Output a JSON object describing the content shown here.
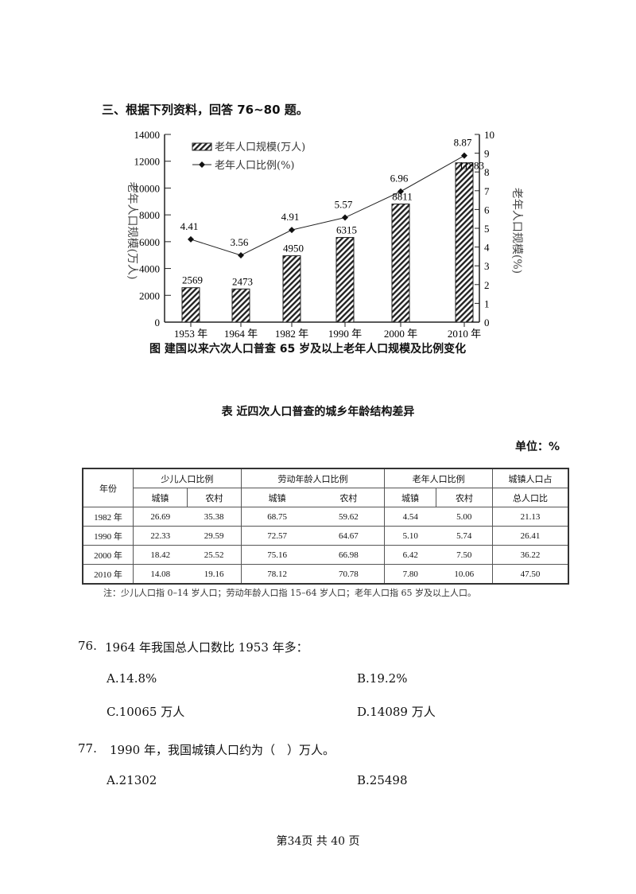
{
  "section_heading": "三、根据下列资料，回答 76~80 题。",
  "chart_data": {
    "type": "bar+line",
    "caption": "图 建国以来六次人口普查 65 岁及以上老年人口规模及比例变化",
    "categories": [
      "1953 年",
      "1964 年",
      "1982 年",
      "1990 年",
      "2000 年",
      "2010 年"
    ],
    "series": [
      {
        "name": "老年人口规模(万人)",
        "type": "bar",
        "axis": "left",
        "values": [
          2569,
          2473,
          4950,
          6315,
          8811,
          11883
        ]
      },
      {
        "name": "老年人口比例(%)",
        "type": "line",
        "axis": "right",
        "values": [
          4.41,
          3.56,
          4.91,
          5.57,
          6.96,
          8.87
        ]
      }
    ],
    "ylabel_left": "老年人口规模(万人)",
    "ylabel_right": "老年人口规模(%)",
    "ylim_left": [
      0,
      14000
    ],
    "yticks_left": [
      "0",
      "2000",
      "4000",
      "6000",
      "8000",
      "10000",
      "12000",
      "14000"
    ],
    "ylim_right": [
      0,
      10
    ],
    "yticks_right": [
      "0",
      "1",
      "2",
      "3",
      "4",
      "5",
      "6",
      "7",
      "8",
      "9",
      "10"
    ],
    "legend": "top-left",
    "grid": false,
    "bar_pattern": "diagonal-hatch"
  },
  "table": {
    "title": "表 近四次人口普查的城乡年龄结构差异",
    "unit": "单位：%",
    "header_year": "年份",
    "groups": [
      "少儿人口比例",
      "劳动年龄人口比例",
      "老年人口比例"
    ],
    "sub": [
      "城镇",
      "农村"
    ],
    "last_col": [
      "城镇人口占",
      "总人口比"
    ],
    "rows": [
      [
        "1982 年",
        "26.69",
        "35.38",
        "68.75",
        "59.62",
        "4.54",
        "5.00",
        "21.13"
      ],
      [
        "1990 年",
        "22.33",
        "29.59",
        "72.57",
        "64.67",
        "5.10",
        "5.74",
        "26.41"
      ],
      [
        "2000 年",
        "18.42",
        "25.52",
        "75.16",
        "66.98",
        "6.42",
        "7.50",
        "36.22"
      ],
      [
        "2010 年",
        "14.08",
        "19.16",
        "78.12",
        "70.78",
        "7.80",
        "10.06",
        "47.50"
      ]
    ],
    "note": "注：少儿人口指 0–14 岁人口；劳动年龄人口指 15–64 岁人口；老年人口指 65 岁及以上人口。"
  },
  "questions": [
    {
      "num": "76.",
      "text": "1964 年我国总人口数比 1953 年多：",
      "options": [
        "A.14.8%",
        "B.19.2%",
        "C.10065 万人",
        "D.14089 万人"
      ]
    },
    {
      "num": "77.",
      "text": "1990 年，我国城镇人口约为（　）万人。",
      "options": [
        "A.21302",
        "B.25498"
      ]
    }
  ],
  "footer": "第34页 共 40 页"
}
